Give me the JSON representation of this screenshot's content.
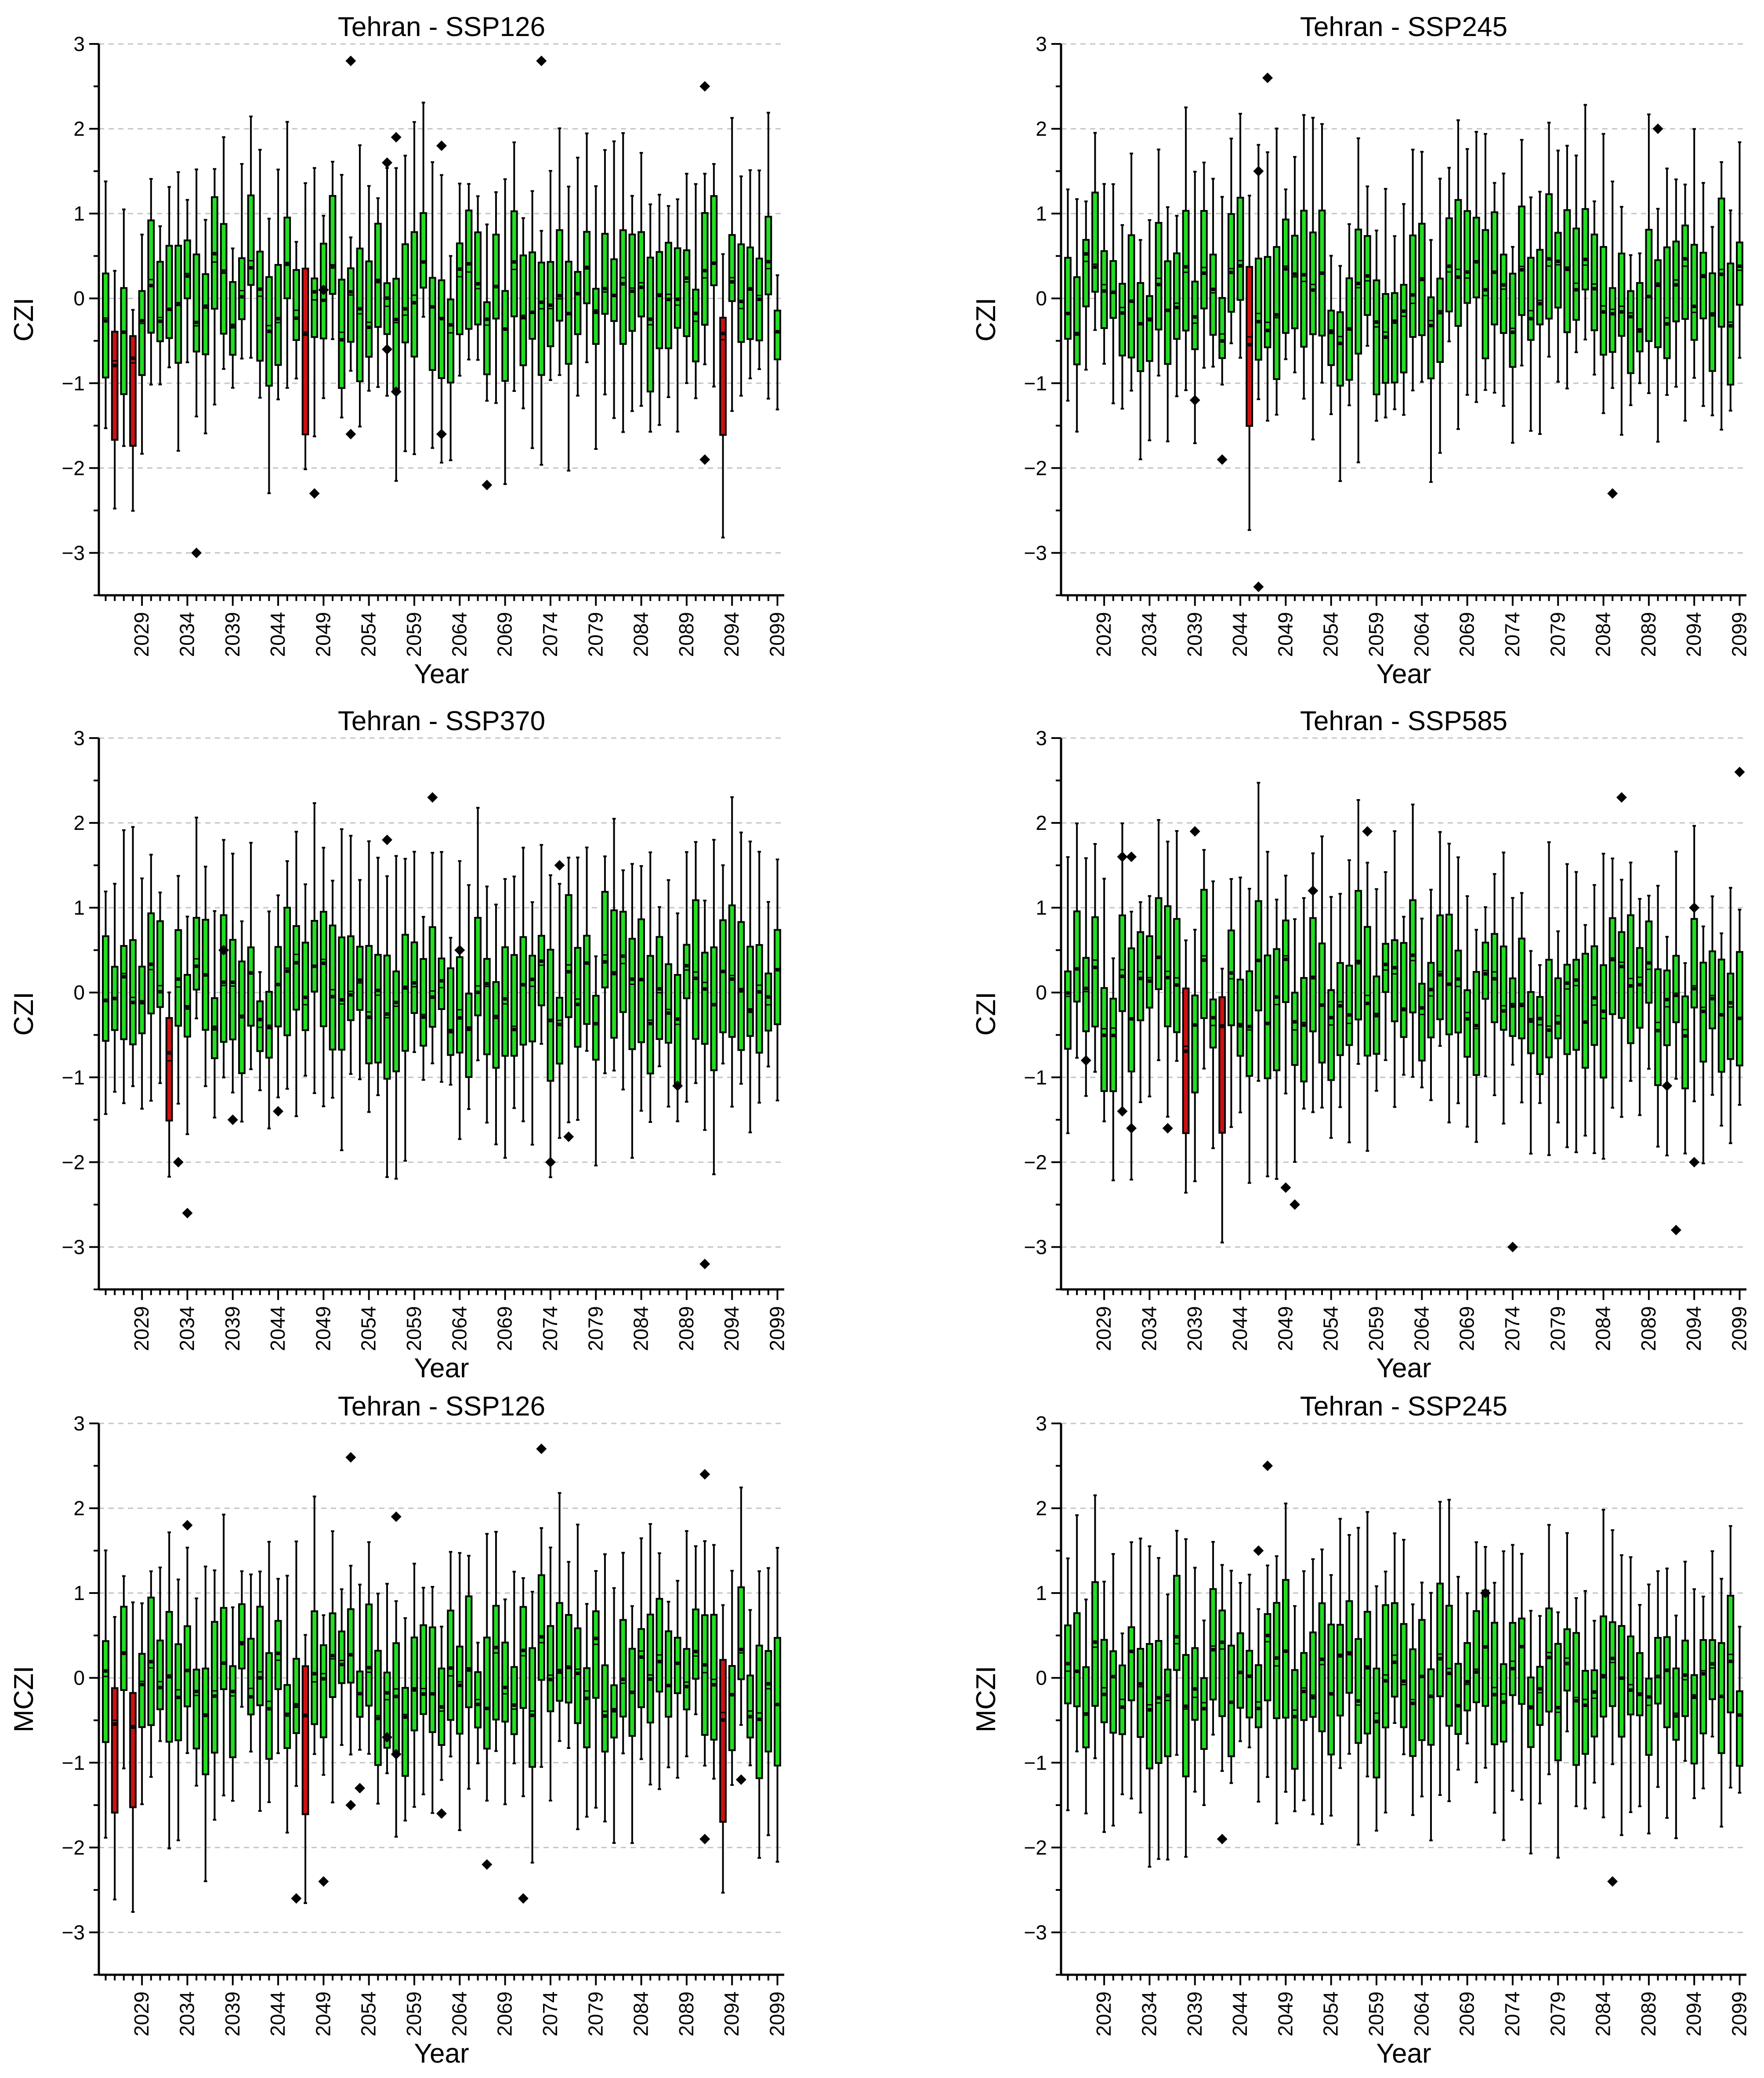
{
  "chart_data": [
    {
      "type": "box",
      "title": "Tehran - SSP126",
      "xlabel": "Year",
      "ylabel": "CZI",
      "ylim": [
        -3.5,
        3
      ],
      "yticks": [
        -3,
        -2,
        -1,
        0,
        1,
        2,
        3
      ],
      "xticks": [
        2029,
        2034,
        2039,
        2044,
        2049,
        2054,
        2059,
        2064,
        2069,
        2074,
        2079,
        2084,
        2089,
        2094,
        2099
      ],
      "x_start": 2025,
      "x_end": 2099,
      "grid": "horizontal dashed",
      "colors": {
        "normal": "#22dd22",
        "drought": "#cc1111"
      },
      "drought_years": [
        2026,
        2028,
        2047,
        2093
      ],
      "outliers": [
        [
          2035,
          -3.0
        ],
        [
          2048,
          -2.3
        ],
        [
          2049,
          0.1
        ],
        [
          2052,
          2.8
        ],
        [
          2052,
          -1.6
        ],
        [
          2056,
          1.6
        ],
        [
          2056,
          -0.6
        ],
        [
          2057,
          1.9
        ],
        [
          2057,
          -1.1
        ],
        [
          2062,
          1.8
        ],
        [
          2062,
          -1.6
        ],
        [
          2067,
          -2.2
        ],
        [
          2073,
          2.8
        ],
        [
          2091,
          2.5
        ],
        [
          2091,
          -1.9
        ]
      ]
    },
    {
      "type": "box",
      "title": "Tehran - SSP245",
      "xlabel": "Year",
      "ylabel": "CZI",
      "ylim": [
        -3.5,
        3
      ],
      "yticks": [
        -3,
        -2,
        -1,
        0,
        1,
        2,
        3
      ],
      "xticks": [
        2029,
        2034,
        2039,
        2044,
        2049,
        2054,
        2059,
        2064,
        2069,
        2074,
        2079,
        2084,
        2089,
        2094,
        2099
      ],
      "x_start": 2025,
      "x_end": 2099,
      "grid": "horizontal dashed",
      "colors": {
        "normal": "#22dd22",
        "drought": "#cc1111"
      },
      "drought_years": [
        2045
      ],
      "outliers": [
        [
          2039,
          -1.2
        ],
        [
          2042,
          -1.9
        ],
        [
          2046,
          1.5
        ],
        [
          2046,
          -3.4
        ],
        [
          2047,
          2.6
        ],
        [
          2085,
          -2.3
        ],
        [
          2090,
          2.0
        ]
      ]
    },
    {
      "type": "box",
      "title": "Tehran - SSP370",
      "xlabel": "Year",
      "ylabel": "CZI",
      "ylim": [
        -3.5,
        3
      ],
      "yticks": [
        -3,
        -2,
        -1,
        0,
        1,
        2,
        3
      ],
      "xticks": [
        2029,
        2034,
        2039,
        2044,
        2049,
        2054,
        2059,
        2064,
        2069,
        2074,
        2079,
        2084,
        2089,
        2094,
        2099
      ],
      "x_start": 2025,
      "x_end": 2099,
      "grid": "horizontal dashed",
      "colors": {
        "normal": "#22dd22",
        "drought": "#cc1111"
      },
      "drought_years": [
        2032
      ],
      "outliers": [
        [
          2033,
          -2.0
        ],
        [
          2034,
          -2.6
        ],
        [
          2038,
          0.5
        ],
        [
          2039,
          -1.5
        ],
        [
          2044,
          -1.4
        ],
        [
          2056,
          1.8
        ],
        [
          2061,
          2.3
        ],
        [
          2064,
          0.5
        ],
        [
          2074,
          -2.0
        ],
        [
          2075,
          1.5
        ],
        [
          2076,
          -1.7
        ],
        [
          2088,
          -1.1
        ],
        [
          2091,
          -3.2
        ]
      ]
    },
    {
      "type": "box",
      "title": "Tehran - SSP585",
      "xlabel": "Year",
      "ylabel": "CZI",
      "ylim": [
        -3.5,
        3
      ],
      "yticks": [
        -3,
        -2,
        -1,
        0,
        1,
        2,
        3
      ],
      "xticks": [
        2029,
        2034,
        2039,
        2044,
        2049,
        2054,
        2059,
        2064,
        2069,
        2074,
        2079,
        2084,
        2089,
        2094,
        2099
      ],
      "x_start": 2025,
      "x_end": 2099,
      "grid": "horizontal dashed",
      "colors": {
        "normal": "#22dd22",
        "drought": "#cc1111"
      },
      "drought_years": [
        2038,
        2042
      ],
      "outliers": [
        [
          2027,
          -0.8
        ],
        [
          2031,
          -1.4
        ],
        [
          2031,
          1.6
        ],
        [
          2032,
          1.6
        ],
        [
          2032,
          -1.6
        ],
        [
          2036,
          -1.6
        ],
        [
          2039,
          1.9
        ],
        [
          2049,
          -2.3
        ],
        [
          2050,
          -2.5
        ],
        [
          2052,
          1.2
        ],
        [
          2058,
          1.9
        ],
        [
          2074,
          -3.0
        ],
        [
          2086,
          2.3
        ],
        [
          2091,
          -1.1
        ],
        [
          2092,
          -2.8
        ],
        [
          2094,
          -2.0
        ],
        [
          2094,
          1.0
        ],
        [
          2099,
          2.6
        ]
      ]
    },
    {
      "type": "box",
      "title": "Tehran - SSP126",
      "xlabel": "Year",
      "ylabel": "MCZI",
      "ylim": [
        -3.5,
        3
      ],
      "yticks": [
        -3,
        -2,
        -1,
        0,
        1,
        2,
        3
      ],
      "xticks": [
        2029,
        2034,
        2039,
        2044,
        2049,
        2054,
        2059,
        2064,
        2069,
        2074,
        2079,
        2084,
        2089,
        2094,
        2099
      ],
      "x_start": 2025,
      "x_end": 2099,
      "grid": "horizontal dashed",
      "colors": {
        "normal": "#22dd22",
        "drought": "#cc1111"
      },
      "drought_years": [
        2026,
        2028,
        2047,
        2093
      ],
      "outliers": [
        [
          2034,
          1.8
        ],
        [
          2046,
          -2.6
        ],
        [
          2049,
          -2.4
        ],
        [
          2052,
          2.6
        ],
        [
          2052,
          -1.5
        ],
        [
          2053,
          -1.3
        ],
        [
          2056,
          -0.7
        ],
        [
          2057,
          1.9
        ],
        [
          2057,
          -0.9
        ],
        [
          2062,
          -1.6
        ],
        [
          2067,
          -2.2
        ],
        [
          2071,
          -2.6
        ],
        [
          2073,
          2.7
        ],
        [
          2091,
          2.4
        ],
        [
          2091,
          -1.9
        ],
        [
          2095,
          -1.2
        ]
      ]
    },
    {
      "type": "box",
      "title": "Tehran - SSP245",
      "xlabel": "Year",
      "ylabel": "MCZI",
      "ylim": [
        -3.5,
        3
      ],
      "yticks": [
        -3,
        -2,
        -1,
        0,
        1,
        2,
        3
      ],
      "xticks": [
        2029,
        2034,
        2039,
        2044,
        2049,
        2054,
        2059,
        2064,
        2069,
        2074,
        2079,
        2084,
        2089,
        2094,
        2099
      ],
      "x_start": 2025,
      "x_end": 2099,
      "grid": "horizontal dashed",
      "colors": {
        "normal": "#22dd22",
        "drought": "#cc1111"
      },
      "drought_years": [],
      "outliers": [
        [
          2042,
          -1.9
        ],
        [
          2046,
          1.5
        ],
        [
          2047,
          2.5
        ],
        [
          2071,
          1.0
        ],
        [
          2085,
          -2.4
        ]
      ]
    }
  ]
}
